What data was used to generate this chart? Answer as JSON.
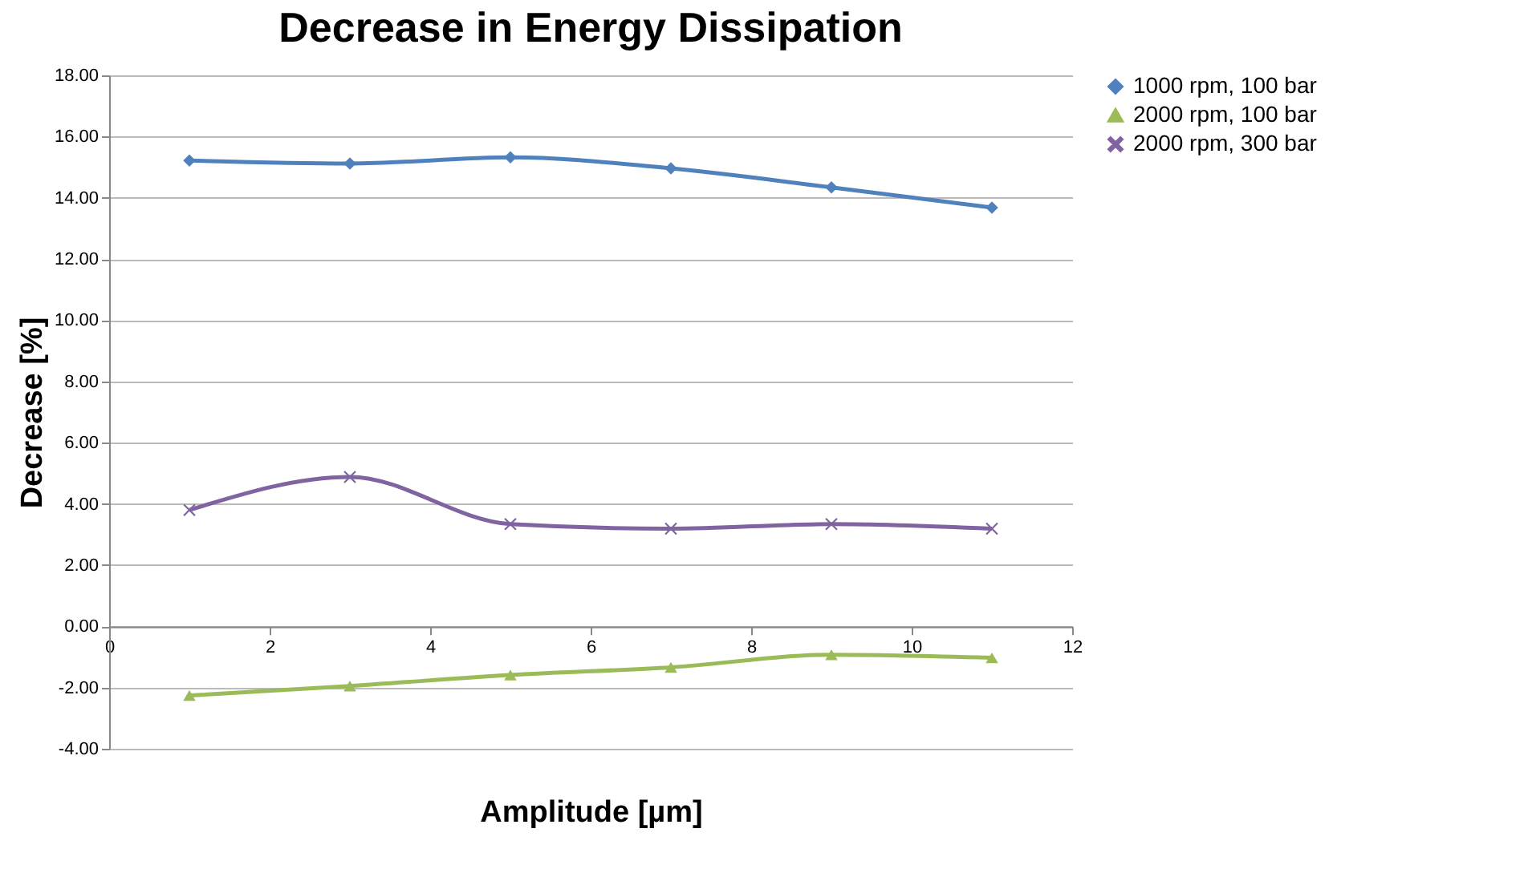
{
  "chart_data": {
    "type": "line",
    "title": "Decrease in Energy Dissipation",
    "xlabel": "Amplitude [µm]",
    "ylabel": "Decrease [%]",
    "x": [
      1,
      3,
      5,
      7,
      9,
      11
    ],
    "series": [
      {
        "name": "1000 rpm, 100 bar",
        "color": "#4f81bd",
        "marker": "diamond",
        "values": [
          15.22,
          15.12,
          15.32,
          14.96,
          14.34,
          13.68
        ]
      },
      {
        "name": "2000 rpm, 100 bar",
        "color": "#9bbb59",
        "marker": "triangle",
        "values": [
          -2.26,
          -1.95,
          -1.59,
          -1.34,
          -0.93,
          -1.03
        ]
      },
      {
        "name": "2000 rpm, 300 bar",
        "color": "#8064a2",
        "marker": "cross",
        "values": [
          3.8,
          4.88,
          3.34,
          3.19,
          3.34,
          3.19
        ]
      }
    ],
    "xlim": [
      0,
      12
    ],
    "xticks": [
      0,
      2,
      4,
      6,
      8,
      10,
      12
    ],
    "ylim": [
      -4,
      18
    ],
    "yticks": [
      {
        "value": -4,
        "label": "-4.00"
      },
      {
        "value": -2,
        "label": "-2.00"
      },
      {
        "value": 0,
        "label": "0.00"
      },
      {
        "value": 2,
        "label": "2.00"
      },
      {
        "value": 4,
        "label": "4.00"
      },
      {
        "value": 6,
        "label": "6.00"
      },
      {
        "value": 8,
        "label": "8.00"
      },
      {
        "value": 10,
        "label": "10.00"
      },
      {
        "value": 12,
        "label": "12.00"
      },
      {
        "value": 14,
        "label": "14.00"
      },
      {
        "value": 16,
        "label": "16.00"
      },
      {
        "value": 18,
        "label": "18.00"
      }
    ],
    "grid": "y",
    "legend": "right",
    "line_style": "solid"
  }
}
